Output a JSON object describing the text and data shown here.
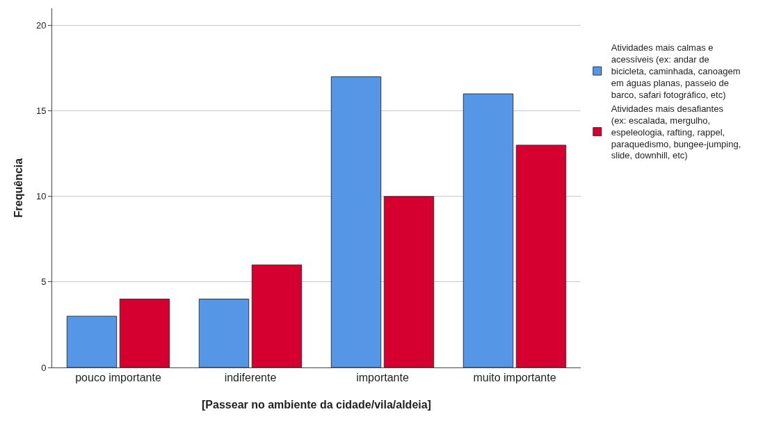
{
  "chart_data": {
    "type": "bar",
    "xlabel": "[Passear no ambiente da cidade/vila/aldeia]",
    "ylabel": "Frequência",
    "categories": [
      "pouco importante",
      "indiferente",
      "importante",
      "muito importante"
    ],
    "series": [
      {
        "name": "Atividades mais calmas e acessíveis (ex: andar de bicicleta, caminhada, canoagem em águas planas, passeio de barco, safari fotográfico, etc)",
        "color": "#5596e6",
        "values": [
          3,
          4,
          17,
          16
        ]
      },
      {
        "name": "Atividades mais desafiantes (ex: escalada, mergulho, espeleologia, rafting, rappel, paraquedismo, bungee-jumping, slide, downhill, etc)",
        "color": "#d5002f",
        "values": [
          4,
          6,
          10,
          13
        ]
      }
    ],
    "ylim": [
      0,
      21
    ],
    "yticks": [
      0,
      5,
      10,
      15,
      20
    ],
    "grid": "y",
    "legend": "top right"
  }
}
